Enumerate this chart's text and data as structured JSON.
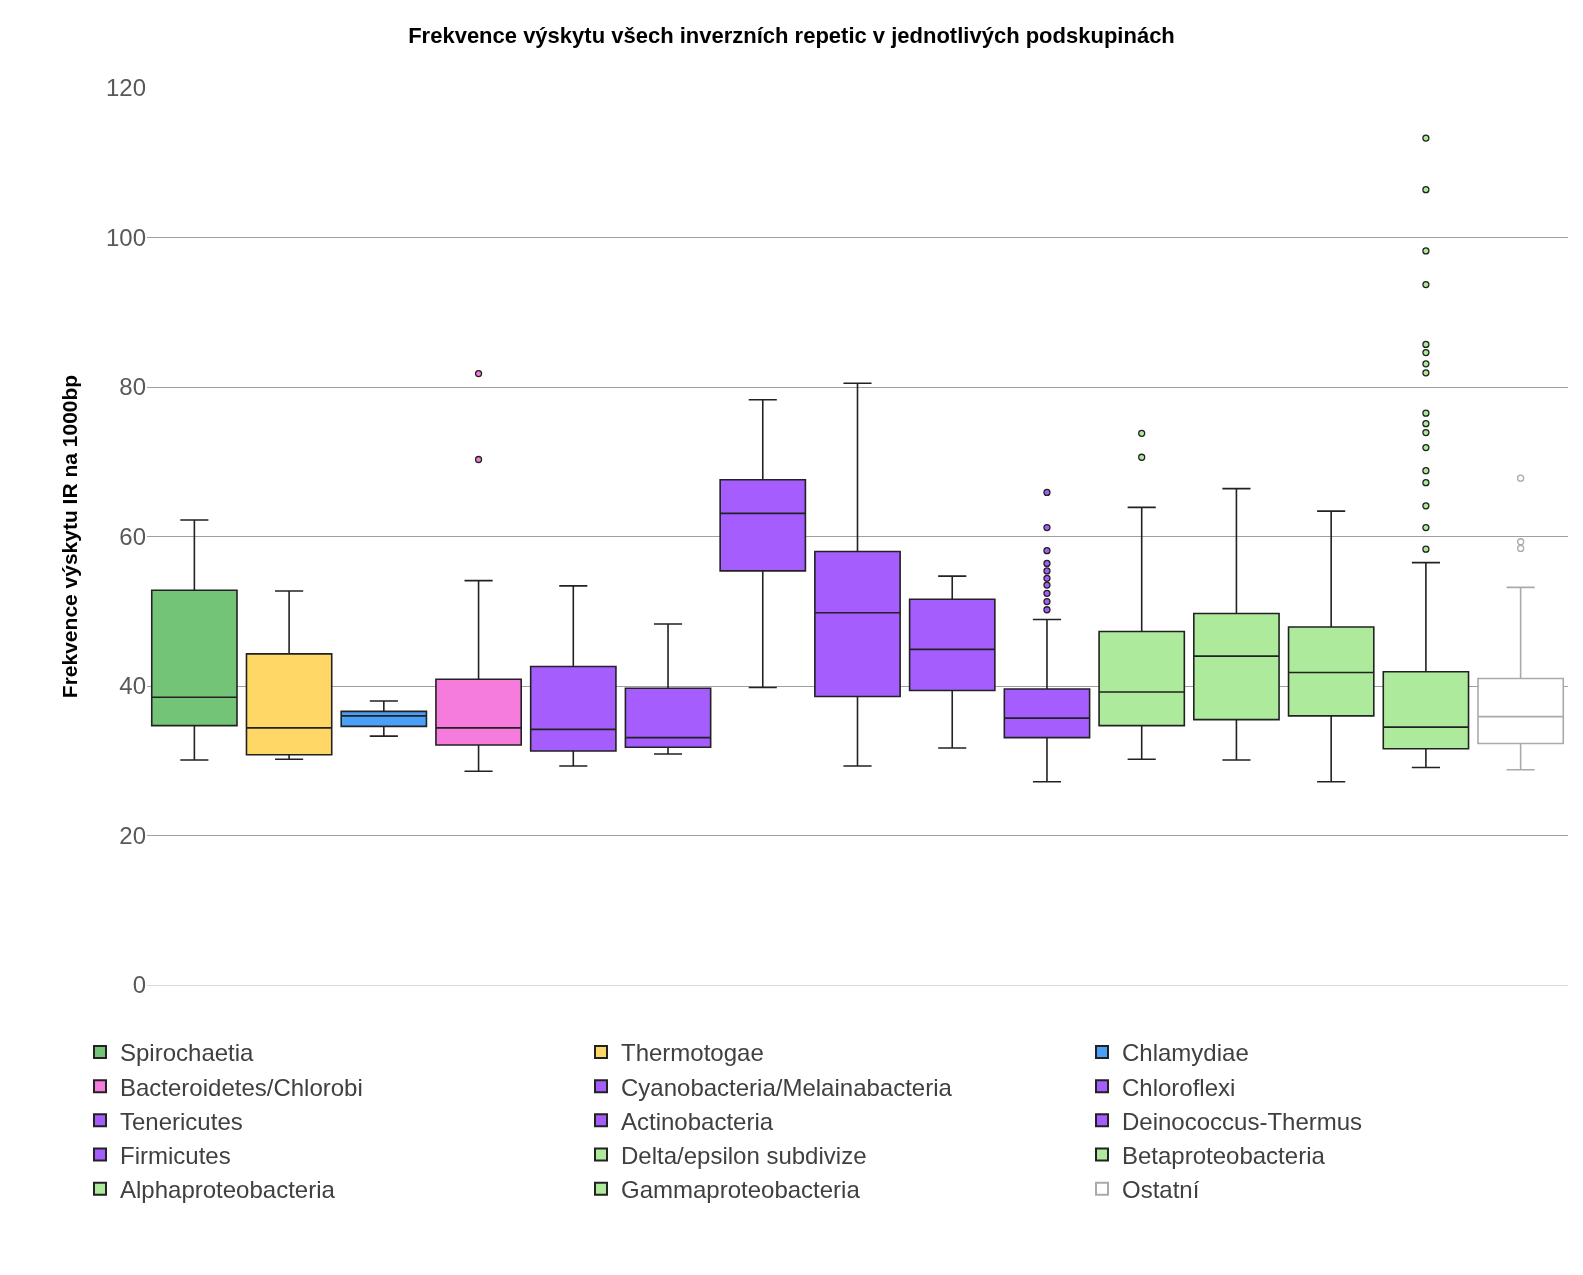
{
  "chart_data": {
    "type": "box",
    "title": "Frekvence výskytu všech inverzních repetic v jednotlivých podskupinách",
    "ylabel": "Frekvence výskytu IR na 1000bp",
    "categories": [
      null,
      null,
      null,
      null,
      null,
      null,
      null,
      null,
      null,
      null,
      null,
      null,
      null,
      null,
      null
    ],
    "ylim": [
      0,
      120
    ],
    "yticks": [
      0,
      20,
      40,
      60,
      80,
      100,
      120
    ],
    "grid": "y",
    "legend": "bottom",
    "marker": "circle",
    "series": [
      {
        "name": "Spirochaetia",
        "color": "#73c476",
        "boxes": [
          {
            "low": 30.1,
            "q1": 34.7,
            "median": 38.5,
            "q3": 52.8,
            "high": 62.2
          },
          null,
          null,
          null,
          null,
          null,
          null,
          null,
          null,
          null,
          null,
          null,
          null,
          null,
          null
        ]
      },
      {
        "name": "Thermotogae",
        "color": "#fed766",
        "boxes": [
          null,
          {
            "low": 30.2,
            "q1": 30.8,
            "median": 34.4,
            "q3": 44.3,
            "high": 52.7
          },
          null,
          null,
          null,
          null,
          null,
          null,
          null,
          null,
          null,
          null,
          null,
          null,
          null
        ]
      },
      {
        "name": "Chlamydiae",
        "color": "#4a9ff7",
        "boxes": [
          null,
          null,
          {
            "low": 33.3,
            "q1": 34.6,
            "median": 36.0,
            "q3": 36.6,
            "high": 38.0
          },
          null,
          null,
          null,
          null,
          null,
          null,
          null,
          null,
          null,
          null,
          null,
          null
        ]
      },
      {
        "name": "Bacteroidetes/Chlorobi",
        "color": "#f57bdd",
        "boxes": [
          null,
          null,
          null,
          {
            "low": 28.6,
            "q1": 32.1,
            "median": 34.4,
            "q3": 40.9,
            "high": 54.1,
            "outliers": [
              81.8,
              70.3
            ]
          },
          null,
          null,
          null,
          null,
          null,
          null,
          null,
          null,
          null,
          null,
          null
        ]
      },
      {
        "name": "Cyanobacteria/Melainabacteria",
        "color": "#a65dfe",
        "boxes": [
          null,
          null,
          null,
          null,
          {
            "low": 29.3,
            "q1": 31.3,
            "median": 34.2,
            "q3": 42.6,
            "high": 53.4
          },
          null,
          null,
          null,
          null,
          null,
          null,
          null,
          null,
          null,
          null
        ]
      },
      {
        "name": "Chloroflexi",
        "color": "#a65dfe",
        "boxes": [
          null,
          null,
          null,
          null,
          null,
          {
            "low": 30.9,
            "q1": 31.8,
            "median": 33.1,
            "q3": 39.7,
            "high": 48.3
          },
          null,
          null,
          null,
          null,
          null,
          null,
          null,
          null,
          null
        ]
      },
      {
        "name": "Tenericutes",
        "color": "#a65dfe",
        "boxes": [
          null,
          null,
          null,
          null,
          null,
          null,
          {
            "low": 39.8,
            "q1": 55.4,
            "median": 63.1,
            "q3": 67.6,
            "high": 78.3
          },
          null,
          null,
          null,
          null,
          null,
          null,
          null,
          null
        ]
      },
      {
        "name": "Actinobacteria",
        "color": "#a65dfe",
        "boxes": [
          null,
          null,
          null,
          null,
          null,
          null,
          null,
          {
            "low": 29.3,
            "q1": 38.6,
            "median": 49.8,
            "q3": 58.0,
            "high": 80.5
          },
          null,
          null,
          null,
          null,
          null,
          null,
          null
        ]
      },
      {
        "name": "Deinococcus-Thermus",
        "color": "#a65dfe",
        "boxes": [
          null,
          null,
          null,
          null,
          null,
          null,
          null,
          null,
          {
            "low": 31.7,
            "q1": 39.4,
            "median": 44.9,
            "q3": 51.6,
            "high": 54.7
          },
          null,
          null,
          null,
          null,
          null,
          null
        ]
      },
      {
        "name": "Firmicutes",
        "color": "#a65dfe",
        "boxes": [
          null,
          null,
          null,
          null,
          null,
          null,
          null,
          null,
          null,
          {
            "low": 27.2,
            "q1": 33.1,
            "median": 35.7,
            "q3": 39.6,
            "high": 48.9,
            "outliers": [
              65.9,
              61.2,
              58.1,
              56.4,
              55.4,
              54.4,
              53.5,
              52.4,
              51.3,
              50.2
            ]
          },
          null,
          null,
          null,
          null,
          null
        ]
      },
      {
        "name": "Delta/epsilon subdivize",
        "color": "#aeea9c",
        "boxes": [
          null,
          null,
          null,
          null,
          null,
          null,
          null,
          null,
          null,
          null,
          {
            "low": 30.2,
            "q1": 34.7,
            "median": 39.2,
            "q3": 47.3,
            "high": 63.9,
            "outliers": [
              73.8,
              70.6
            ]
          },
          null,
          null,
          null,
          null
        ]
      },
      {
        "name": "Betaproteobacteria",
        "color": "#aeea9c",
        "boxes": [
          null,
          null,
          null,
          null,
          null,
          null,
          null,
          null,
          null,
          null,
          null,
          {
            "low": 30.1,
            "q1": 35.5,
            "median": 44.0,
            "q3": 49.7,
            "high": 66.4
          },
          null,
          null,
          null
        ]
      },
      {
        "name": "Alphaproteobacteria",
        "color": "#aeea9c",
        "boxes": [
          null,
          null,
          null,
          null,
          null,
          null,
          null,
          null,
          null,
          null,
          null,
          null,
          {
            "low": 27.2,
            "q1": 36.0,
            "median": 41.8,
            "q3": 47.9,
            "high": 63.4
          },
          null,
          null
        ]
      },
      {
        "name": "Gammaproteobacteria",
        "color": "#aeea9c",
        "boxes": [
          null,
          null,
          null,
          null,
          null,
          null,
          null,
          null,
          null,
          null,
          null,
          null,
          null,
          {
            "low": 29.1,
            "q1": 31.6,
            "median": 34.5,
            "q3": 41.9,
            "high": 56.5,
            "outliers": [
              113.3,
              106.4,
              98.2,
              93.7,
              85.7,
              84.6,
              83.1,
              81.9,
              76.5,
              75.1,
              73.9,
              71.9,
              68.8,
              67.2,
              64.1,
              61.2,
              58.3
            ]
          },
          null
        ]
      },
      {
        "name": "Ostatní",
        "color": "#ffffff",
        "boxes": [
          null,
          null,
          null,
          null,
          null,
          null,
          null,
          null,
          null,
          null,
          null,
          null,
          null,
          null,
          {
            "low": 28.8,
            "q1": 32.3,
            "median": 35.9,
            "q3": 41.0,
            "high": 53.2,
            "outliers": [
              67.8,
              59.3,
              58.4
            ]
          }
        ]
      }
    ]
  }
}
